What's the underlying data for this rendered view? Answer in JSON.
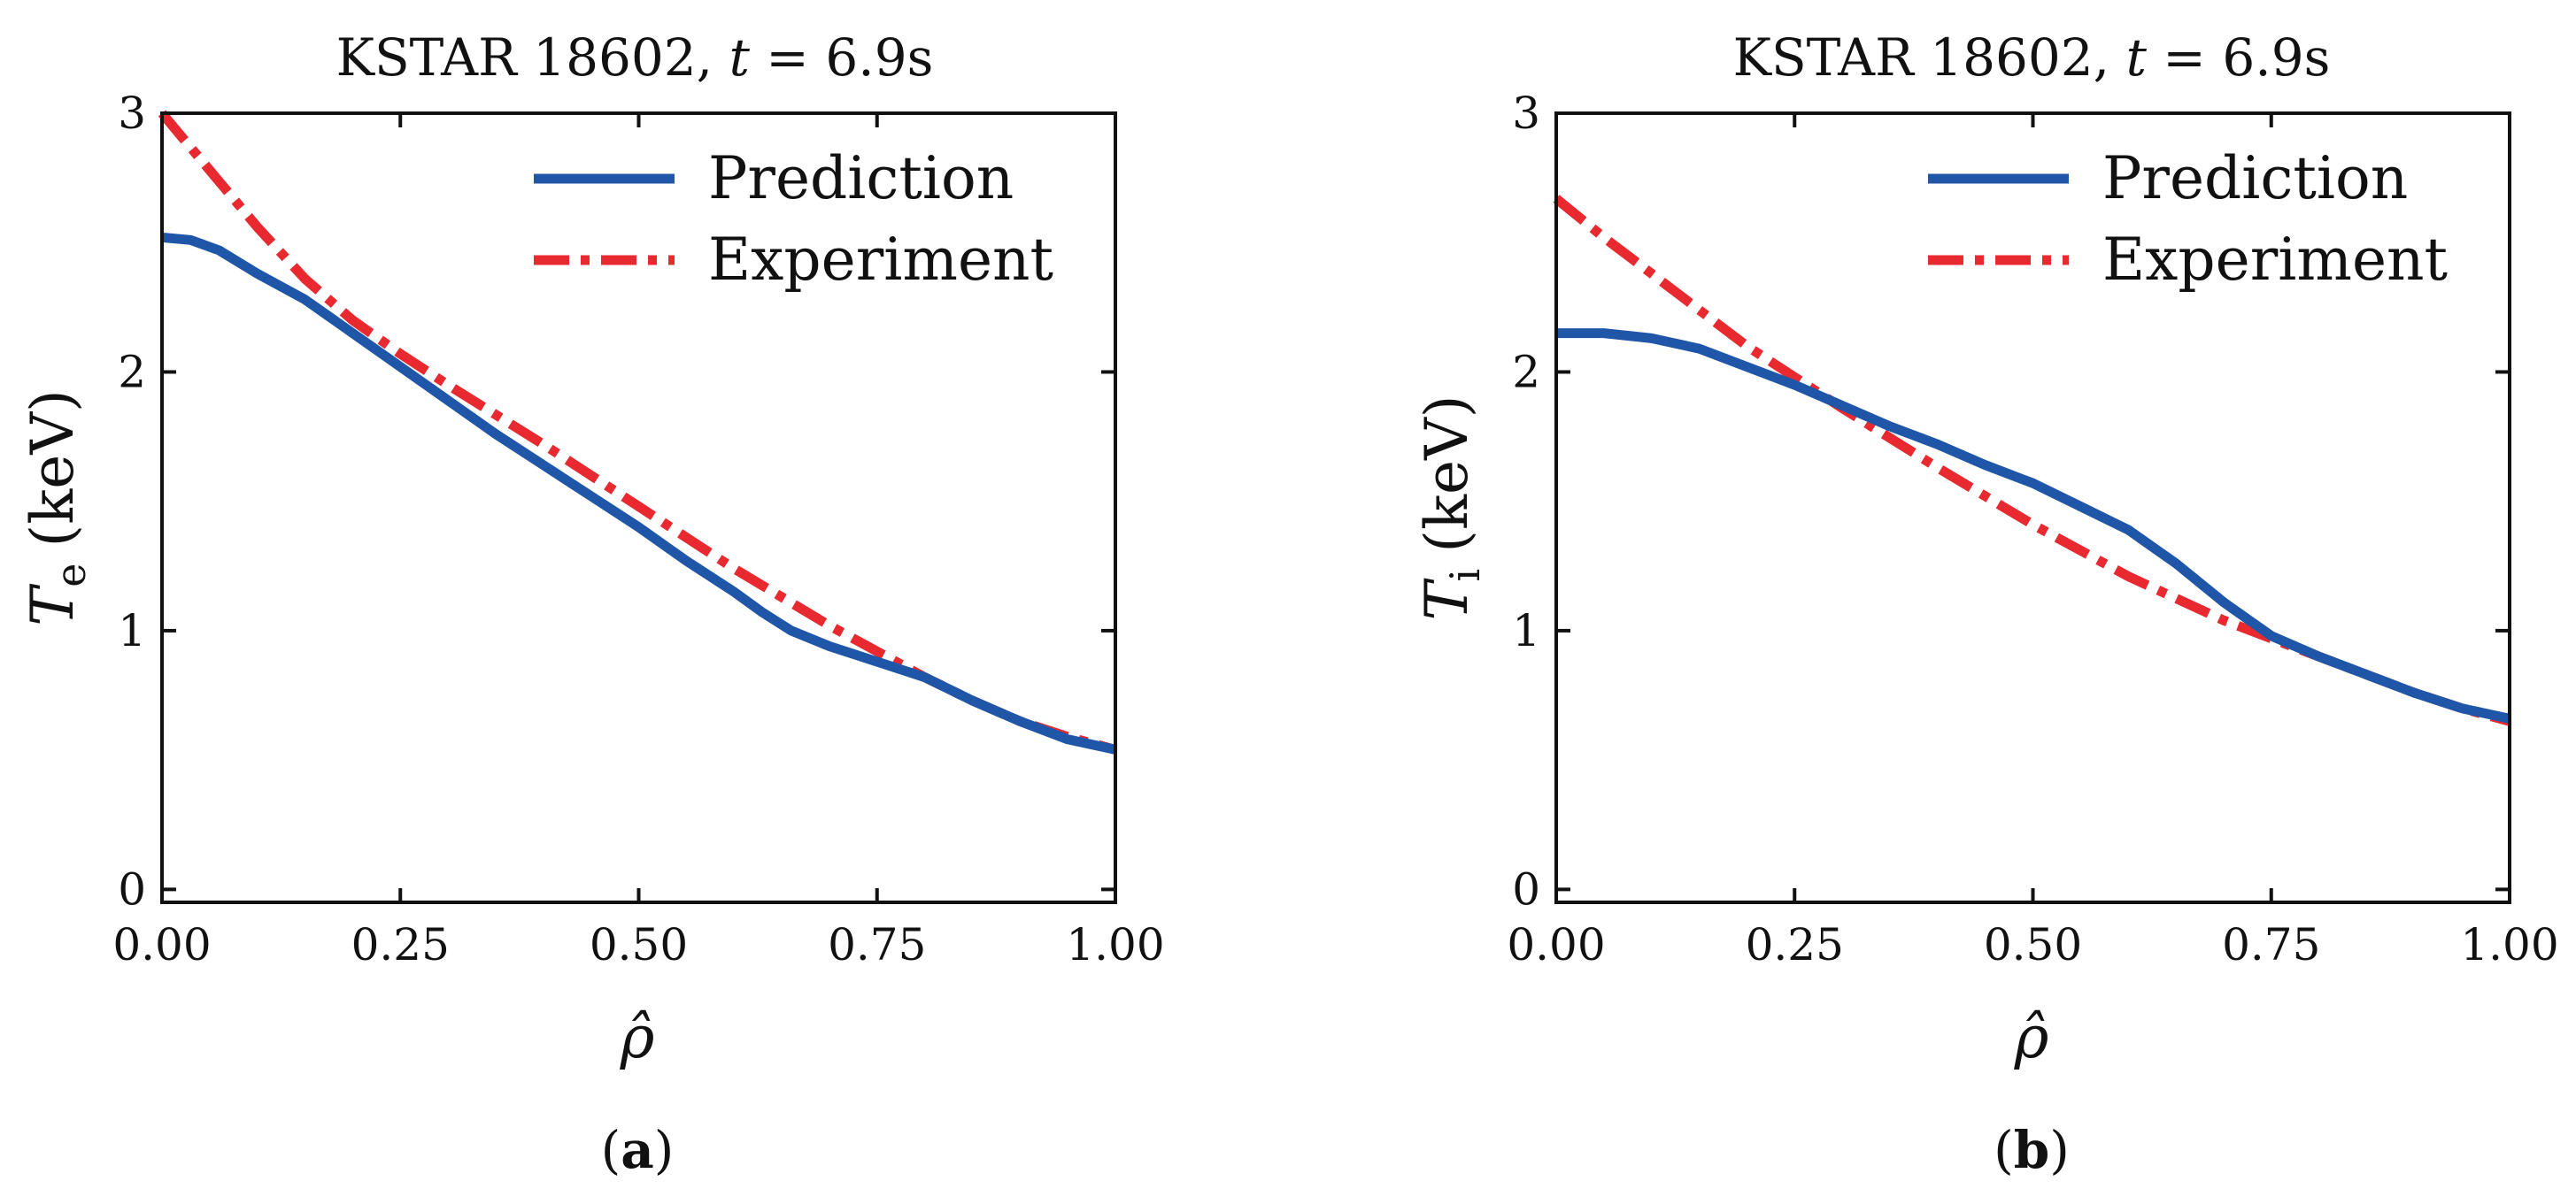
{
  "chart_data": [
    {
      "type": "line",
      "title": "KSTAR 18602, t = 6.9s",
      "title_parts": {
        "prefix": "KSTAR 18602, ",
        "variable": "t",
        "eq": " = ",
        "value": "6.9s"
      },
      "xlabel": "ρ̂",
      "ylabel": "T_e (keV)",
      "ylabel_parts": {
        "symbol": "T",
        "subscript": "e",
        "units": "(keV)"
      },
      "xlim": [
        0.0,
        1.0
      ],
      "ylim": [
        -0.05,
        3.0
      ],
      "xticks": [
        "0.00",
        "0.25",
        "0.50",
        "0.75",
        "1.00"
      ],
      "yticks": [
        "0",
        "1",
        "2",
        "3"
      ],
      "panel_label": {
        "open": "(",
        "letter": "a",
        "close": ")"
      },
      "legend_position": "top-right",
      "series": [
        {
          "name": "Prediction",
          "color": "#1f56a8",
          "style": "solid",
          "x": [
            0.0,
            0.03,
            0.06,
            0.1,
            0.15,
            0.2,
            0.25,
            0.3,
            0.35,
            0.4,
            0.45,
            0.5,
            0.55,
            0.6,
            0.63,
            0.66,
            0.7,
            0.75,
            0.8,
            0.85,
            0.9,
            0.95,
            1.0
          ],
          "values": [
            2.52,
            2.51,
            2.47,
            2.38,
            2.28,
            2.15,
            2.02,
            1.89,
            1.76,
            1.64,
            1.52,
            1.4,
            1.27,
            1.15,
            1.07,
            1.0,
            0.94,
            0.88,
            0.82,
            0.73,
            0.65,
            0.58,
            0.54
          ]
        },
        {
          "name": "Experiment",
          "color": "#e8292f",
          "style": "dashdot",
          "x": [
            0.0,
            0.05,
            0.1,
            0.15,
            0.2,
            0.25,
            0.3,
            0.4,
            0.5,
            0.6,
            0.7,
            0.8,
            0.85,
            0.9,
            0.95,
            1.0
          ],
          "values": [
            3.0,
            2.78,
            2.56,
            2.36,
            2.2,
            2.07,
            1.95,
            1.72,
            1.48,
            1.24,
            1.02,
            0.82,
            0.73,
            0.65,
            0.59,
            0.54
          ]
        }
      ]
    },
    {
      "type": "line",
      "title": "KSTAR 18602, t = 6.9s",
      "title_parts": {
        "prefix": "KSTAR 18602, ",
        "variable": "t",
        "eq": " = ",
        "value": "6.9s"
      },
      "xlabel": "ρ̂",
      "ylabel": "T_i (keV)",
      "ylabel_parts": {
        "symbol": "T",
        "subscript": "i",
        "units": "(keV)"
      },
      "xlim": [
        0.0,
        1.0
      ],
      "ylim": [
        -0.05,
        3.0
      ],
      "xticks": [
        "0.00",
        "0.25",
        "0.50",
        "0.75",
        "1.00"
      ],
      "yticks": [
        "0",
        "1",
        "2",
        "3"
      ],
      "panel_label": {
        "open": "(",
        "letter": "b",
        "close": ")"
      },
      "legend_position": "top-right",
      "series": [
        {
          "name": "Prediction",
          "color": "#1f56a8",
          "style": "solid",
          "x": [
            0.0,
            0.05,
            0.1,
            0.15,
            0.2,
            0.25,
            0.3,
            0.35,
            0.4,
            0.45,
            0.5,
            0.55,
            0.6,
            0.65,
            0.7,
            0.75,
            0.8,
            0.85,
            0.9,
            0.95,
            1.0
          ],
          "values": [
            2.15,
            2.15,
            2.13,
            2.09,
            2.02,
            1.95,
            1.87,
            1.79,
            1.72,
            1.64,
            1.57,
            1.48,
            1.39,
            1.26,
            1.11,
            0.98,
            0.9,
            0.83,
            0.76,
            0.7,
            0.66
          ]
        },
        {
          "name": "Experiment",
          "color": "#e8292f",
          "style": "dashdot",
          "x": [
            0.0,
            0.05,
            0.1,
            0.15,
            0.2,
            0.25,
            0.3,
            0.4,
            0.5,
            0.6,
            0.7,
            0.8,
            0.85,
            0.9,
            0.95,
            1.0
          ],
          "values": [
            2.67,
            2.52,
            2.38,
            2.24,
            2.1,
            1.98,
            1.86,
            1.63,
            1.41,
            1.21,
            1.04,
            0.9,
            0.83,
            0.76,
            0.7,
            0.65
          ]
        }
      ]
    }
  ]
}
